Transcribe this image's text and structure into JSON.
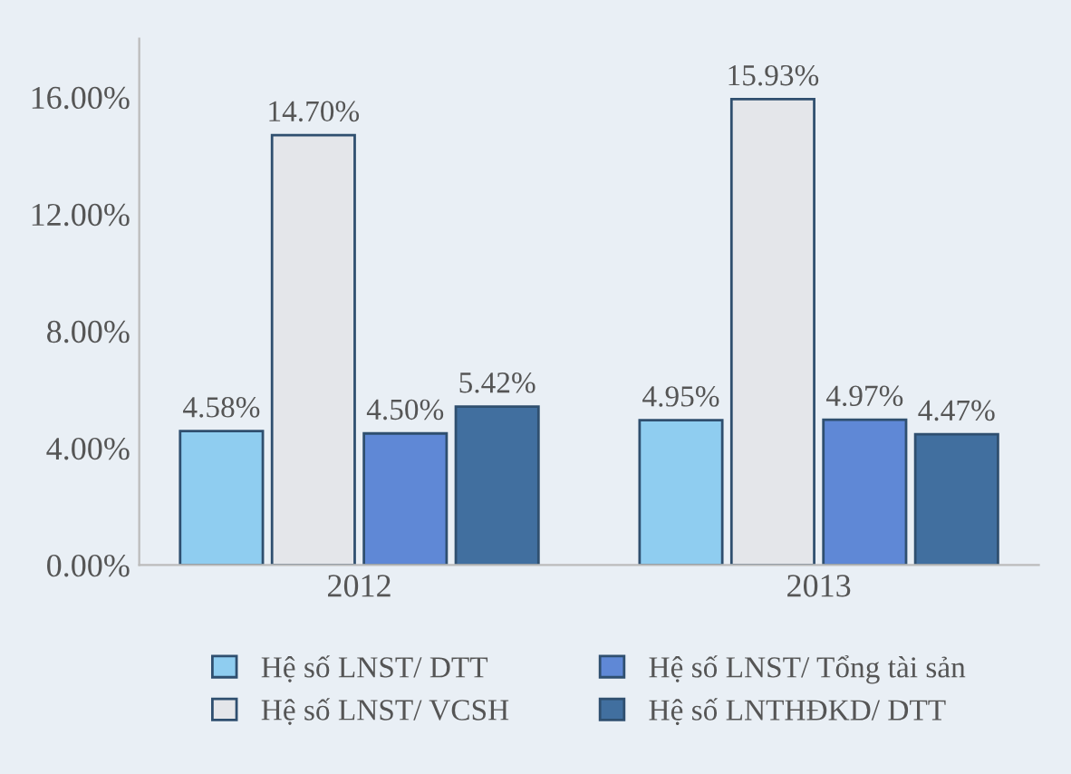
{
  "chart_data": {
    "type": "bar",
    "categories": [
      "2012",
      "2013"
    ],
    "series": [
      {
        "name": "Hệ số LNST/ DTT",
        "color": "#8fcdf0",
        "values": [
          4.58,
          4.95
        ],
        "value_labels": [
          "4.58%",
          "4.95%"
        ]
      },
      {
        "name": "Hệ số LNST/ VCSH",
        "color": "#e4e6ea",
        "values": [
          14.7,
          15.93
        ],
        "value_labels": [
          "14.70%",
          "15.93%"
        ]
      },
      {
        "name": "Hệ số LNST/ Tổng tài sản",
        "color": "#5f88d6",
        "values": [
          4.5,
          4.97
        ],
        "value_labels": [
          "4.50%",
          "4.97%"
        ]
      },
      {
        "name": "Hệ số LNTHĐKD/ DTT",
        "color": "#416f9f",
        "values": [
          5.42,
          4.47
        ],
        "value_labels": [
          "5.42%",
          "4.47%"
        ]
      }
    ],
    "ylim": [
      0,
      18
    ],
    "yticks": [
      {
        "value": 0,
        "label": "0.00%"
      },
      {
        "value": 4,
        "label": "4.00%"
      },
      {
        "value": 8,
        "label": "8.00%"
      },
      {
        "value": 12,
        "label": "12.00%"
      },
      {
        "value": 16,
        "label": "16.00%"
      }
    ],
    "grid": false,
    "legend": "bottom"
  }
}
